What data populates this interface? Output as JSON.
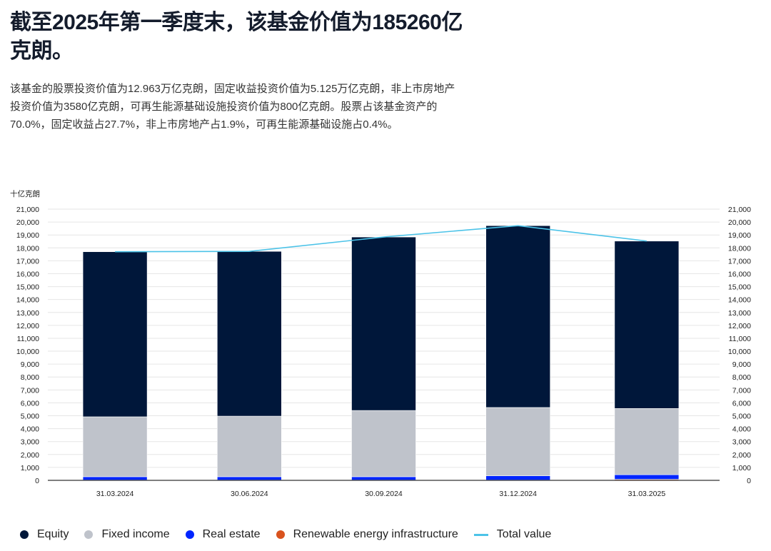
{
  "title": "截至2025年第一季度末，该基金价值为185260亿克朗。",
  "description": "该基金的股票投资价值为12.963万亿克朗，固定收益投资价值为5.125万亿克朗，非上市房地产投资价值为3580亿克朗，可再生能源基础设施投资价值为800亿克朗。股票占该基金资产的70.0%，固定收益占27.7%，非上市房地产占1.9%，可再生能源基础设施占0.4%。",
  "chart_data": {
    "type": "bar",
    "stacked": true,
    "ylabel": "十亿克朗",
    "ylim": [
      0,
      21000
    ],
    "ytick_step": 1000,
    "grid": true,
    "legend_position": "bottom",
    "categories": [
      "31.03.2024",
      "30.06.2024",
      "30.09.2024",
      "31.12.2024",
      "31.03.2025"
    ],
    "series": [
      {
        "name": "Renewable energy infrastructure",
        "color": "#d9531e",
        "values": [
          0,
          0,
          0,
          0,
          80
        ]
      },
      {
        "name": "Real estate",
        "color": "#0025ff",
        "values": [
          280,
          280,
          280,
          350,
          358
        ]
      },
      {
        "name": "Fixed income",
        "color": "#bfc3cb",
        "values": [
          4640,
          4690,
          5130,
          5290,
          5125
        ]
      },
      {
        "name": "Equity",
        "color": "#00173a",
        "values": [
          12780,
          12760,
          13430,
          14080,
          12963
        ]
      }
    ],
    "line": {
      "name": "Total value",
      "color": "#4cc3e8",
      "values": [
        17700,
        17730,
        18840,
        19720,
        18526
      ]
    }
  }
}
